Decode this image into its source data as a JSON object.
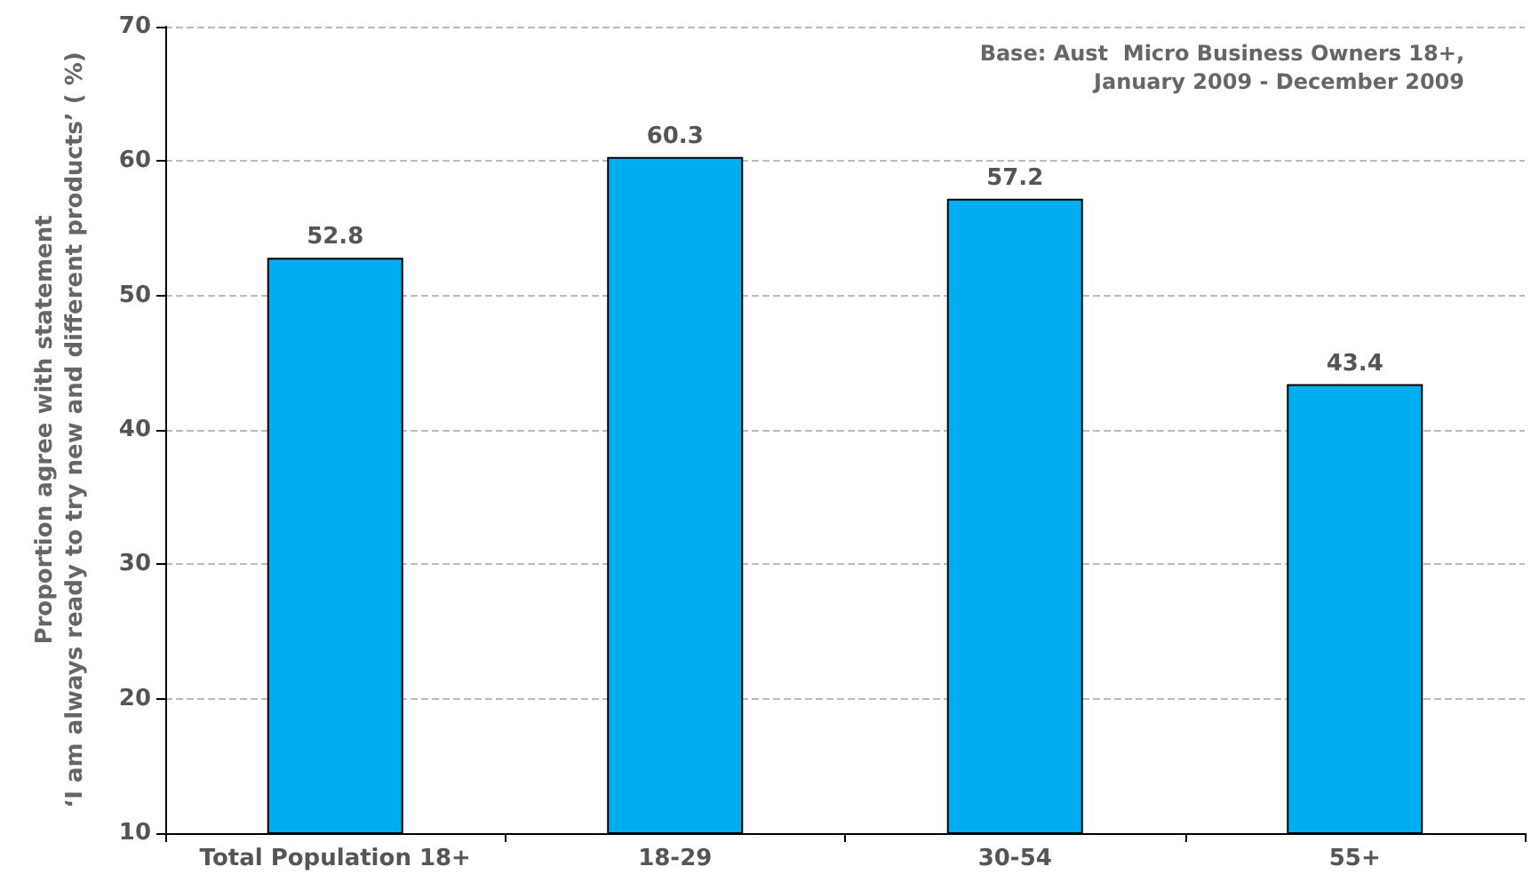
{
  "chart_data": {
    "type": "bar",
    "ylabel": "Proportion agree with statement\n‘I am always ready to try new and different products’ ( %)",
    "annotations": [
      "Base: Aust  Micro Business Owners 18+,\nJanuary 2009 - December 2009"
    ],
    "categories": [
      "Total Population 18+",
      "18-29",
      "30-54",
      "55+"
    ],
    "values": [
      52.8,
      60.3,
      57.2,
      43.4
    ],
    "color": "#00aeef",
    "ylim": [
      10,
      70
    ],
    "yticks": [
      10,
      20,
      30,
      40,
      50,
      60,
      70
    ],
    "grid": "y",
    "data_labels": true
  }
}
